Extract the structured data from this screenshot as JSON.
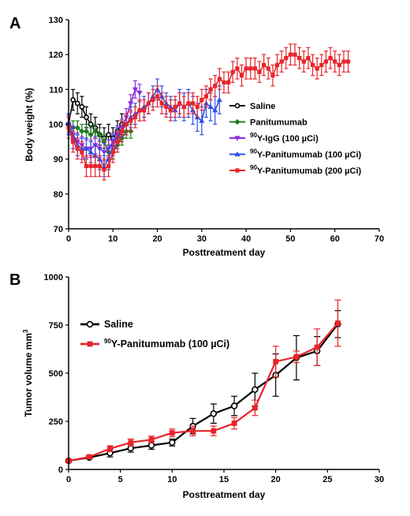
{
  "figure": {
    "panel_a_letter": "A",
    "panel_b_letter": "B"
  },
  "chart_data": [
    {
      "type": "line",
      "panel": "A",
      "xlabel": "Posttreatment day",
      "ylabel": "Body weight (%)",
      "xlim": [
        0,
        70
      ],
      "ylim": [
        70,
        130
      ],
      "xticks": [
        0,
        10,
        20,
        30,
        40,
        50,
        60,
        70
      ],
      "yticks": [
        70,
        80,
        90,
        100,
        110,
        120,
        130
      ],
      "grid": false,
      "legend_position": "right",
      "series": [
        {
          "name": "Saline",
          "sup": "",
          "color": "#000000",
          "marker": "circle",
          "x": [
            0,
            1,
            2,
            3,
            4,
            5,
            6,
            7,
            8,
            9,
            10,
            11,
            12
          ],
          "y": [
            100,
            107,
            106,
            105,
            102,
            100,
            99,
            97,
            96,
            97,
            96,
            98,
            100
          ],
          "err": [
            3,
            3,
            3,
            3,
            3,
            3,
            3,
            3,
            3,
            3,
            3,
            3,
            3
          ]
        },
        {
          "name": "Panitumumab",
          "sup": "",
          "color": "#1f7a1f",
          "marker": "diamond",
          "x": [
            0,
            1,
            2,
            3,
            4,
            5,
            6,
            7,
            8,
            9,
            10,
            11,
            12,
            13,
            14
          ],
          "y": [
            100,
            99,
            99,
            98,
            98,
            97,
            98,
            97,
            95,
            92,
            92,
            94,
            96,
            98,
            98
          ],
          "err": [
            2,
            2,
            2,
            2,
            2,
            2,
            2,
            2,
            2,
            2,
            2,
            2,
            2,
            2,
            2
          ]
        },
        {
          "name": "Y-IgG (100 µCi)",
          "sup": "90",
          "color": "#8b2be2",
          "marker": "triangle-down",
          "x": [
            0,
            1,
            2,
            3,
            4,
            5,
            6,
            7,
            8,
            9,
            10,
            11,
            12,
            13,
            14,
            15,
            16
          ],
          "y": [
            100,
            97,
            95,
            94,
            93,
            93,
            94,
            93,
            92,
            93,
            95,
            97,
            99,
            102,
            106,
            110,
            109
          ],
          "err": [
            2.5,
            2.5,
            2.5,
            2.5,
            2.5,
            2.5,
            2.5,
            2.5,
            2.5,
            2.5,
            2.5,
            2.5,
            2.5,
            2.5,
            2.5,
            2.5,
            2.5
          ]
        },
        {
          "name": "Y-Panitumumab (100 µCi)",
          "sup": "90",
          "color": "#2f4fe6",
          "marker": "triangle-up",
          "x": [
            0,
            1,
            2,
            3,
            4,
            5,
            6,
            7,
            8,
            9,
            10,
            11,
            12,
            13,
            14,
            15,
            16,
            17,
            18,
            19,
            20,
            21,
            22,
            23,
            24,
            25,
            26,
            27,
            28,
            29,
            30,
            31,
            32,
            33,
            34
          ],
          "y": [
            100,
            96,
            94,
            93,
            93,
            92,
            91,
            90,
            88,
            90,
            94,
            96,
            98,
            100,
            102,
            103,
            104,
            105,
            106,
            108,
            110,
            108,
            106,
            105,
            104,
            106,
            105,
            106,
            104,
            102,
            101,
            106,
            105,
            104,
            107
          ],
          "err": [
            3,
            3,
            3,
            3,
            3,
            3,
            3,
            3,
            3,
            3,
            3,
            3,
            3,
            3,
            3,
            3,
            3,
            3,
            3,
            3,
            3,
            3,
            3,
            3,
            3,
            4,
            4,
            4,
            4,
            4,
            4,
            4,
            4,
            4,
            4
          ]
        },
        {
          "name": "Y-Panitumumab (200 µCi)",
          "sup": "90",
          "color": "#e8242a",
          "marker": "square",
          "x": [
            0,
            1,
            2,
            3,
            4,
            5,
            6,
            7,
            8,
            9,
            10,
            11,
            12,
            13,
            14,
            15,
            16,
            17,
            18,
            19,
            20,
            21,
            22,
            23,
            24,
            25,
            26,
            27,
            28,
            29,
            30,
            31,
            32,
            33,
            34,
            35,
            36,
            37,
            38,
            39,
            40,
            41,
            42,
            43,
            44,
            45,
            46,
            47,
            48,
            49,
            50,
            51,
            52,
            53,
            54,
            55,
            56,
            57,
            58,
            59,
            60,
            61,
            62,
            63
          ],
          "y": [
            99,
            95,
            93,
            92,
            88,
            88,
            88,
            88,
            87,
            88,
            92,
            95,
            98,
            100,
            101,
            102,
            104,
            104,
            106,
            107,
            108,
            106,
            105,
            104,
            105,
            106,
            105,
            106,
            106,
            105,
            107,
            108,
            110,
            111,
            113,
            112,
            112,
            115,
            116,
            114,
            116,
            116,
            116,
            115,
            117,
            116,
            114,
            117,
            118,
            119,
            120,
            120,
            119,
            118,
            119,
            117,
            116,
            117,
            118,
            119,
            118,
            117,
            118,
            118
          ],
          "err": [
            3,
            3,
            3,
            3,
            3,
            3,
            3,
            3,
            3,
            3,
            3,
            3,
            3,
            3,
            3,
            3,
            3,
            3,
            3,
            3,
            3,
            3,
            3,
            3,
            3,
            3,
            3,
            3,
            3,
            3,
            3,
            3,
            3,
            3,
            3,
            3,
            3,
            3,
            3,
            3,
            3,
            3,
            3,
            3,
            3,
            3,
            3,
            3,
            3,
            3,
            3,
            3,
            3,
            3,
            3,
            3,
            3,
            3,
            3,
            3,
            3,
            3,
            3,
            3
          ]
        }
      ]
    },
    {
      "type": "line",
      "panel": "B",
      "xlabel": "Posttreatment day",
      "ylabel": "Tumor volume mm",
      "ylabel_sup": "3",
      "xlim": [
        0,
        30
      ],
      "ylim": [
        0,
        1000
      ],
      "xticks": [
        0,
        5,
        10,
        15,
        20,
        25,
        30
      ],
      "yticks": [
        0,
        250,
        500,
        750,
        1000
      ],
      "grid": false,
      "legend_position": "top-left",
      "series": [
        {
          "name": "Saline",
          "sup": "",
          "color": "#000000",
          "marker": "circle",
          "x": [
            0,
            2,
            4,
            6,
            8,
            10,
            12,
            14,
            16,
            18,
            20,
            22,
            24,
            26
          ],
          "y": [
            45,
            62,
            85,
            110,
            125,
            140,
            225,
            290,
            330,
            415,
            490,
            580,
            615,
            755
          ],
          "err": [
            8,
            8,
            20,
            20,
            20,
            18,
            40,
            50,
            50,
            85,
            110,
            115,
            75,
            70
          ]
        },
        {
          "name": "Y-Panitumumab (100 µCi)",
          "sup": "90",
          "color": "#e8242a",
          "marker": "square",
          "x": [
            0,
            2,
            4,
            6,
            8,
            10,
            12,
            14,
            16,
            18,
            20,
            22,
            24,
            26
          ],
          "y": [
            45,
            65,
            108,
            140,
            155,
            190,
            200,
            200,
            240,
            320,
            560,
            585,
            635,
            760
          ],
          "err": [
            8,
            8,
            15,
            18,
            18,
            20,
            25,
            25,
            30,
            40,
            80,
            30,
            95,
            120
          ]
        }
      ]
    }
  ]
}
